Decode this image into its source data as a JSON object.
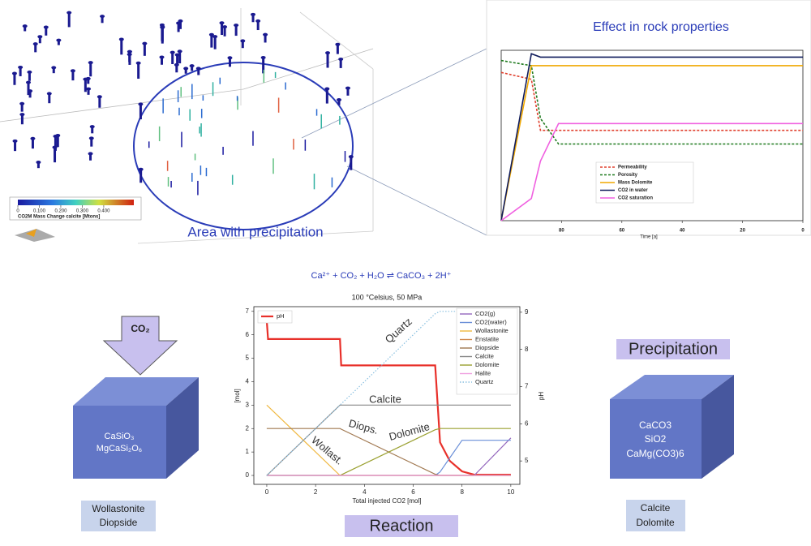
{
  "scene": {
    "callout": "Area with precipitation",
    "colorbar": {
      "label": "CO2M Mass Change calcite [Mtons]",
      "lim": [
        0,
        0.54
      ],
      "ticks": [
        0,
        {
          "value": 0.1,
          "label": "0.100"
        },
        {
          "value": 0.2,
          "label": "0.200"
        },
        {
          "value": 0.3,
          "label": "0.300"
        },
        {
          "value": 0.4,
          "label": "0.400"
        }
      ]
    }
  },
  "chart_data": [
    {
      "type": "line",
      "title": "Effect in rock properties",
      "xlabel": "Time [a]",
      "x": [
        100,
        90,
        87,
        81,
        0
      ],
      "xlim": [
        100,
        0
      ],
      "xticks": [
        80,
        60,
        40,
        20,
        0
      ],
      "ylim": [
        0,
        1
      ],
      "legend": "lower center",
      "series": [
        {
          "name": "Permeability",
          "color": "#e0412f",
          "style": "dashed",
          "values": [
            0.87,
            0.83,
            0.53,
            0.53,
            0.53
          ]
        },
        {
          "name": "Porosity",
          "color": "#1e7a1e",
          "style": "dashed",
          "values": [
            0.94,
            0.91,
            0.6,
            0.45,
            0.45
          ]
        },
        {
          "name": "Mass Dolomite",
          "color": "#f0a800",
          "style": "solid",
          "values": [
            0,
            0.91,
            0.91,
            0.91,
            0.91
          ]
        },
        {
          "name": "CO2 in water",
          "color": "#101c5c",
          "style": "solid",
          "values": [
            0,
            0.98,
            0.96,
            0.96,
            0.96
          ]
        },
        {
          "name": "CO2 saturation",
          "color": "#f060e0",
          "style": "solid",
          "values": [
            0,
            0.13,
            0.35,
            0.57,
            0.57
          ]
        }
      ]
    },
    {
      "type": "line",
      "title": "100 °Celsius, 50 MPa",
      "xlabel": "Total injected CO2 [mol]",
      "ylabel": "[mol]",
      "y2label": "pH",
      "x": [
        0,
        0.05,
        3,
        3.05,
        6.9,
        7.1,
        7.5,
        8,
        8.5,
        10
      ],
      "xlim": [
        -0.53,
        10.37
      ],
      "xticks": [
        0,
        2,
        4,
        6,
        8,
        10
      ],
      "ylim": [
        -0.38,
        7.2
      ],
      "yticks": [
        0,
        1,
        2,
        3,
        4,
        5,
        6,
        7
      ],
      "y2lim": [
        4.37,
        9.15
      ],
      "y2ticks": [
        5,
        6,
        7,
        8,
        9
      ],
      "legend": "upper right",
      "series": [
        {
          "name": "pH",
          "color": "#e8302a",
          "style": "thick",
          "axis": "y2",
          "values": [
            8.78,
            8.28,
            8.28,
            7.57,
            7.57,
            5.5,
            5.0,
            4.72,
            4.63,
            4.63
          ]
        },
        {
          "name": "CO2(g)",
          "color": "#9467bd",
          "style": "solid",
          "values": [
            0,
            0,
            0,
            0,
            0,
            0,
            0,
            0,
            0,
            1.6
          ]
        },
        {
          "name": "CO2(water)",
          "color": "#6a8fd8",
          "style": "solid",
          "values": [
            0,
            0,
            0,
            0,
            0,
            0.15,
            0.75,
            1.5,
            1.5,
            1.5
          ]
        },
        {
          "name": "Wollastonite",
          "color": "#f0b840",
          "style": "solid",
          "values": [
            3,
            2.95,
            0,
            0,
            0,
            0,
            0,
            0,
            0,
            0
          ]
        },
        {
          "name": "Enstatite",
          "color": "#d08a50",
          "style": "solid",
          "values": [
            0,
            0,
            0,
            0,
            0,
            0,
            0,
            0,
            0,
            0
          ]
        },
        {
          "name": "Diopside",
          "color": "#a07850",
          "style": "solid",
          "values": [
            2,
            2,
            2,
            1.975,
            0.05,
            0,
            0,
            0,
            0,
            0
          ]
        },
        {
          "name": "Calcite",
          "color": "#888888",
          "style": "solid",
          "values": [
            0,
            0.05,
            3,
            3,
            3,
            3,
            3,
            3,
            3,
            3
          ]
        },
        {
          "name": "Dolomite",
          "color": "#9aa030",
          "style": "solid",
          "values": [
            0,
            0,
            0,
            0.025,
            1.95,
            2,
            2,
            2,
            2,
            2
          ]
        },
        {
          "name": "Halite",
          "color": "#f0a0e0",
          "style": "solid",
          "values": [
            0,
            0,
            0,
            0,
            0,
            0,
            0,
            0,
            0,
            0
          ]
        },
        {
          "name": "Quartz",
          "color": "#8ac0e0",
          "style": "dotted",
          "values": [
            0,
            0.05,
            3,
            3.05,
            6.9,
            7,
            7,
            7,
            7,
            7
          ]
        }
      ],
      "annotations": [
        "Quartz",
        "Calcite",
        "Diops.",
        "Dolomite",
        "Wollast."
      ]
    }
  ],
  "equation": "Ca²⁺ + CO₂ + H₂O ⇌ CaCO₃ + 2H⁺",
  "left_block": {
    "arrow_label": "CO₂",
    "minerals": [
      "CaSiO₃",
      "MgCaSi₂O₆"
    ],
    "caption": [
      "Wollastonite",
      "Diopside"
    ]
  },
  "reaction_label": "Reaction",
  "right_block": {
    "heading": "Precipitation",
    "minerals": [
      "CaCO3",
      "SiO2",
      "CaMg(CO3)6"
    ],
    "caption": [
      "Calcite",
      "Dolomite"
    ]
  }
}
